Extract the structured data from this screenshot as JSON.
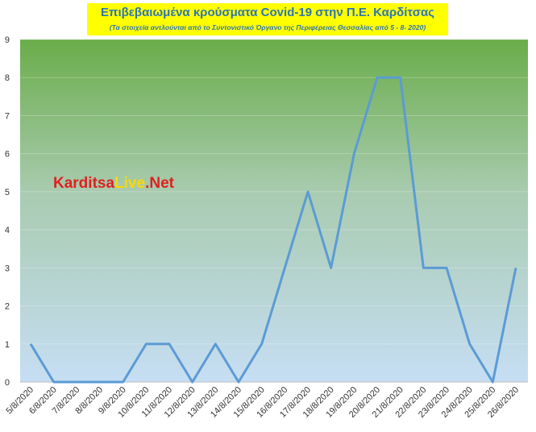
{
  "chart_data": {
    "type": "line",
    "title": "Επιβεβαιωμένα κρούσματα Covid-19 στην Π.Ε. Καρδίτσας",
    "subtitle": "(Τα στοιχεία αντλούνται από το Συντονιστικό Όργανο της Περιφέρειας Θεσσαλίας από 5 - 8- 2020)",
    "watermark": [
      "Karditsa",
      "Live",
      ".Net"
    ],
    "categories": [
      "5/8/2020",
      "6/8/2020",
      "7/8/2020",
      "8/8/2020",
      "9/8/2020",
      "10/8/2020",
      "11/8/2020",
      "12/8/2020",
      "13/8/2020",
      "14/8/2020",
      "15/8/2020",
      "16/8/2020",
      "17/8/2020",
      "18/8/2020",
      "19/8/2020",
      "20/8/2020",
      "21/8/2020",
      "22/8/2020",
      "23/8/2020",
      "24/8/2020",
      "25/8/2020",
      "26/8/2020"
    ],
    "values": [
      1,
      0,
      0,
      0,
      0,
      1,
      1,
      0,
      1,
      0,
      1,
      3,
      5,
      3,
      6,
      8,
      8,
      3,
      3,
      1,
      0,
      3
    ],
    "color": "#5b9bd5",
    "ylim": [
      0,
      9
    ],
    "yticks": [
      0,
      1,
      2,
      3,
      4,
      5,
      6,
      7,
      8,
      9
    ],
    "grid": true
  }
}
